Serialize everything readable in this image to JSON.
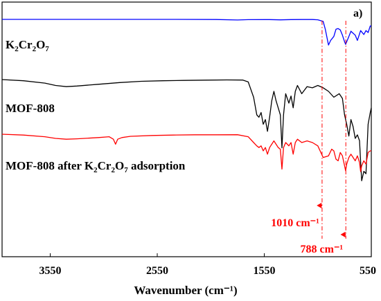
{
  "chart_data": {
    "type": "line",
    "panel_label": "a)",
    "xlabel": "Wavenumber (cm⁻¹)",
    "ylabel": "",
    "xlim": [
      4000,
      550
    ],
    "x_reversed": true,
    "xticks": [
      3550,
      2550,
      1550,
      550
    ],
    "xtick_labels": [
      "3550",
      "2550",
      "1550",
      "550"
    ],
    "series": [
      {
        "name": "K2Cr2O7",
        "label_base": [
          "K",
          "Cr",
          "O"
        ],
        "label_sub": [
          "2",
          "2",
          "7"
        ],
        "color": "#0000ff",
        "x": [
          4000,
          3600,
          3200,
          2800,
          2400,
          2000,
          1800,
          1700,
          1500,
          1400,
          1300,
          1200,
          1100,
          1050,
          1000,
          980,
          950,
          930,
          900,
          880,
          860,
          840,
          820,
          800,
          790,
          780,
          760,
          740,
          720,
          700,
          680,
          650,
          620,
          600,
          580,
          560,
          550
        ],
        "y": [
          100,
          100,
          100,
          100,
          100,
          99.8,
          99,
          99.6,
          99.7,
          99.3,
          99.7,
          99.8,
          99.8,
          99.4,
          97,
          85,
          61,
          68,
          74,
          85,
          86,
          84,
          76,
          66,
          62,
          66,
          74,
          82,
          79,
          76,
          68,
          83,
          77,
          83,
          80,
          90,
          90
        ]
      },
      {
        "name": "MOF-808",
        "color": "#000000",
        "x": [
          4000,
          3800,
          3600,
          3500,
          3400,
          3300,
          3100,
          2900,
          2700,
          2500,
          2300,
          2100,
          1900,
          1750,
          1700,
          1650,
          1620,
          1600,
          1580,
          1560,
          1540,
          1520,
          1500,
          1480,
          1460,
          1440,
          1420,
          1400,
          1385,
          1370,
          1350,
          1320,
          1300,
          1280,
          1260,
          1240,
          1200,
          1150,
          1100,
          1050,
          1000,
          950,
          900,
          850,
          820,
          800,
          780,
          760,
          740,
          720,
          700,
          680,
          660,
          650,
          640,
          620,
          600,
          580,
          560,
          550
        ],
        "y": [
          100,
          99,
          97,
          95,
          94,
          94.5,
          96,
          97.5,
          98.5,
          99,
          99.3,
          99.5,
          99.7,
          99.6,
          98,
          85,
          70,
          68,
          72,
          62,
          66,
          56,
          68,
          82,
          90,
          82,
          76,
          70,
          42,
          70,
          88,
          80,
          86,
          76,
          90,
          95,
          88,
          94,
          93,
          95,
          93,
          90,
          85,
          88,
          84,
          70,
          62,
          52,
          66,
          60,
          50,
          53,
          48,
          30,
          14,
          22,
          20,
          62,
          72,
          76
        ]
      },
      {
        "name": "MOF-808 after K2Cr2O7 adsorption",
        "label_parts": [
          "MOF-808 after K",
          "2",
          "Cr",
          "2",
          "O",
          "7",
          " adsorption"
        ],
        "color": "#ff0000",
        "x": [
          4000,
          3800,
          3600,
          3500,
          3400,
          3300,
          3100,
          3000,
          2960,
          2940,
          2920,
          2880,
          2800,
          2600,
          2400,
          2200,
          2000,
          1800,
          1700,
          1650,
          1620,
          1600,
          1580,
          1560,
          1540,
          1520,
          1500,
          1480,
          1460,
          1440,
          1420,
          1400,
          1385,
          1370,
          1350,
          1320,
          1300,
          1280,
          1260,
          1240,
          1200,
          1150,
          1100,
          1050,
          1000,
          950,
          920,
          900,
          880,
          860,
          840,
          820,
          800,
          790,
          780,
          760,
          740,
          720,
          700,
          680,
          660,
          650,
          640,
          620,
          600,
          580,
          560,
          550
        ],
        "y": [
          100,
          99,
          97,
          95,
          94,
          94.5,
          96,
          97,
          94,
          88,
          94,
          96,
          97.5,
          98.5,
          99,
          99.3,
          99.3,
          99.4,
          97,
          90,
          86,
          84,
          86,
          80,
          84,
          76,
          84,
          88,
          92,
          88,
          84,
          82,
          58,
          84,
          90,
          86,
          90,
          76,
          90,
          94,
          90,
          92,
          90,
          86,
          72,
          74,
          82,
          80,
          70,
          68,
          78,
          74,
          62,
          56,
          64,
          72,
          76,
          72,
          68,
          74,
          66,
          55,
          62,
          68,
          64,
          78,
          80,
          80
        ]
      }
    ],
    "annotations": [
      {
        "kind": "dashdot_vline",
        "x": 1010,
        "color": "#ff0000"
      },
      {
        "kind": "dashdot_vline",
        "x": 788,
        "color": "#ff0000"
      },
      {
        "kind": "shift_arrow",
        "from_x": 1010,
        "to_x": 1060,
        "label": "1010 cm⁻¹",
        "color": "#ff0000"
      },
      {
        "kind": "shift_arrow",
        "from_x": 788,
        "to_x": 838,
        "label": "788 cm⁻¹",
        "color": "#ff0000"
      }
    ],
    "grid": false,
    "legend": "inline"
  }
}
